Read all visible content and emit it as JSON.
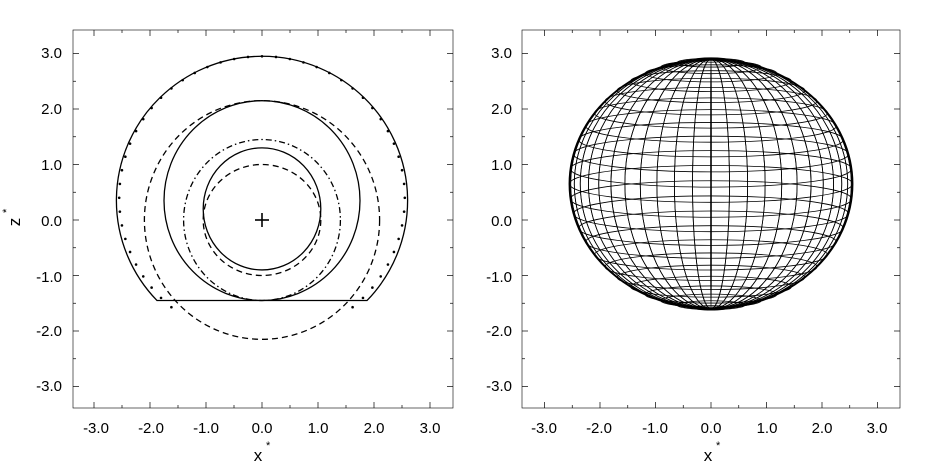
{
  "figure": {
    "panels": [
      {
        "id": "left",
        "x_axis_label": "x",
        "x_axis_label_sup": "*",
        "y_axis_label": "z",
        "y_axis_label_sup": "*",
        "x_tick_labels": [
          "-3.0",
          "-2.0",
          "-1.0",
          "0.0",
          "1.0",
          "2.0",
          "3.0"
        ],
        "y_tick_labels": [
          "3.0",
          "2.0",
          "1.0",
          "0.0",
          "-1.0",
          "-2.0",
          "-3.0"
        ]
      },
      {
        "id": "right",
        "x_axis_label": "x",
        "x_axis_label_sup": "*",
        "x_tick_labels": [
          "-3.0",
          "-2.0",
          "-1.0",
          "0.0",
          "1.0",
          "2.0",
          "3.0"
        ],
        "y_tick_labels": [
          "3.0",
          "2.0",
          "1.0",
          "0.0",
          "-1.0",
          "-2.0",
          "-3.0"
        ]
      }
    ]
  },
  "chart_data": [
    {
      "type": "line",
      "xlabel": "x*",
      "ylabel": "z*",
      "xlim": [
        -3.4,
        3.4
      ],
      "ylim": [
        -3.4,
        3.4
      ],
      "grid": false,
      "center_marker": {
        "x": 0.0,
        "z": 0.0,
        "symbol": "+"
      },
      "series": [
        {
          "style": "solid",
          "shape": "truncated-circle",
          "cx": 0.0,
          "cz": 0.35,
          "r": 2.6,
          "cut_z": -1.45
        },
        {
          "style": "dotted",
          "shape": "circle",
          "cx": 0.0,
          "cz": 0.4,
          "r": 2.55,
          "z_range": [
            -1.72,
            3.0
          ]
        },
        {
          "style": "dashed",
          "shape": "ellipse",
          "cx": 0.0,
          "cz": 0.0,
          "rx": 2.1,
          "rz": 2.15
        },
        {
          "style": "solid",
          "shape": "ellipse",
          "cx": 0.0,
          "cz": 0.35,
          "rx": 1.75,
          "rz": 1.8
        },
        {
          "style": "dash-dot",
          "shape": "ellipse",
          "cx": 0.0,
          "cz": 0.0,
          "rx": 1.4,
          "rz": 1.45
        },
        {
          "style": "solid",
          "shape": "ellipse",
          "cx": 0.0,
          "cz": 0.2,
          "rx": 1.05,
          "rz": 1.1
        },
        {
          "style": "dashed",
          "shape": "ellipse",
          "cx": 0.0,
          "cz": 0.0,
          "rx": 1.05,
          "rz": 1.0
        }
      ]
    },
    {
      "type": "line",
      "xlabel": "x*",
      "xlim": [
        -3.4,
        3.4
      ],
      "ylim": [
        -3.4,
        3.4
      ],
      "grid": false,
      "wireframe_sphere": {
        "cx": 0.0,
        "cz": 0.65,
        "rx": 2.55,
        "rz": 2.25,
        "latitude_lines": 26,
        "meridians": 24
      }
    }
  ]
}
